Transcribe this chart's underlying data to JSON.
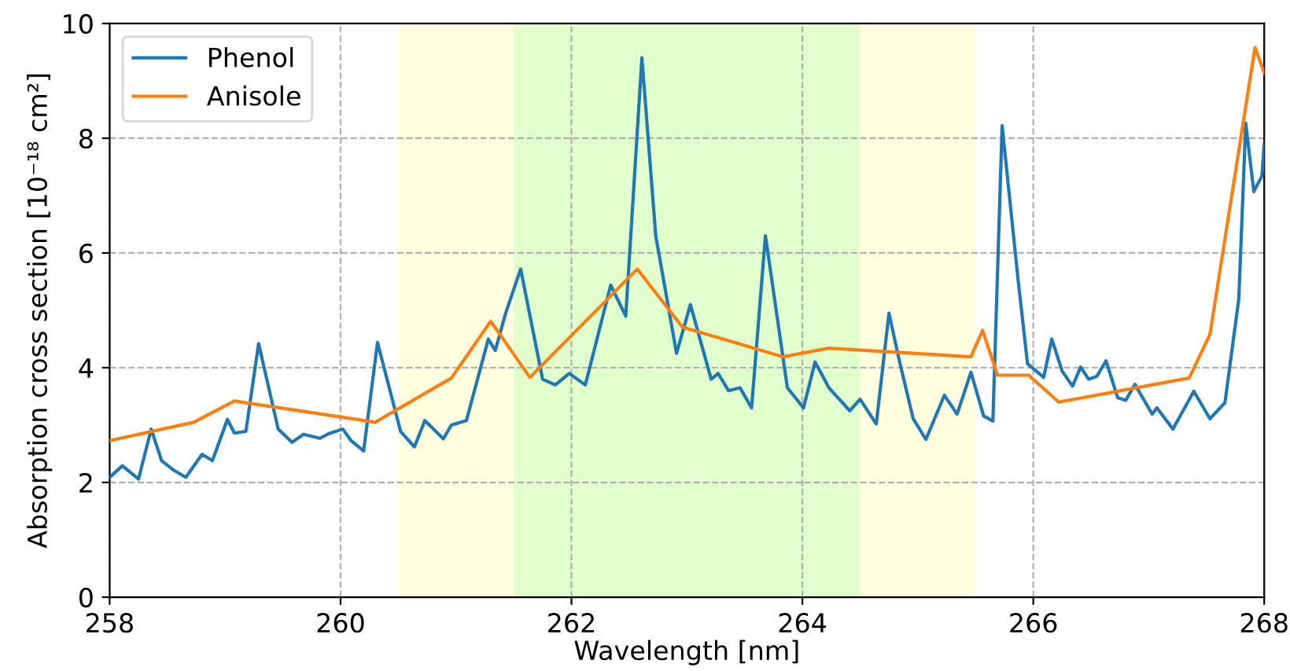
{
  "chart_data": {
    "type": "line",
    "xlabel": "Wavelength [nm]",
    "ylabel": "Absorption cross section [10⁻¹⁸ cm²]",
    "xlim": [
      258,
      268
    ],
    "xticks": [
      258,
      260,
      262,
      264,
      266,
      268
    ],
    "ylim": [
      0,
      10
    ],
    "yticks": [
      0,
      2,
      4,
      6,
      8,
      10
    ],
    "grid": true,
    "legend": "top left",
    "bands": [
      {
        "axis": "x",
        "from": 260.5,
        "to": 265.5,
        "color": "#ffffe0"
      },
      {
        "axis": "x",
        "from": 261.5,
        "to": 264.5,
        "color": "#e0ffcc"
      }
    ],
    "series": [
      {
        "name": "Phenol",
        "color": "#1f77b4",
        "x": [
          258,
          258.11,
          258.25,
          258.36,
          258.45,
          258.55,
          258.66,
          258.8,
          258.89,
          259.02,
          259.08,
          259.18,
          259.29,
          259.46,
          259.58,
          259.68,
          259.82,
          259.91,
          260.02,
          260.09,
          260.2,
          260.32,
          260.52,
          260.64,
          260.73,
          260.89,
          260.96,
          261.09,
          261.28,
          261.34,
          261.43,
          261.56,
          261.75,
          261.86,
          261.98,
          262.12,
          262.34,
          262.47,
          262.61,
          262.73,
          262.91,
          263.03,
          263.21,
          263.27,
          263.36,
          263.46,
          263.56,
          263.68,
          263.87,
          264.01,
          264.11,
          264.23,
          264.41,
          264.5,
          264.64,
          264.75,
          264.84,
          264.96,
          265.07,
          265.23,
          265.34,
          265.46,
          265.57,
          265.65,
          265.73,
          265.87,
          265.95,
          266.09,
          266.16,
          266.25,
          266.34,
          266.41,
          266.48,
          266.55,
          266.63,
          266.73,
          266.8,
          266.88,
          267.03,
          267.07,
          267.21,
          267.39,
          267.53,
          267.66,
          267.78,
          267.84,
          267.91,
          267.98,
          268
        ],
        "values": [
          2.09,
          2.29,
          2.06,
          2.93,
          2.38,
          2.22,
          2.09,
          2.49,
          2.38,
          3.1,
          2.86,
          2.89,
          4.42,
          2.93,
          2.7,
          2.84,
          2.77,
          2.86,
          2.93,
          2.73,
          2.55,
          4.44,
          2.89,
          2.62,
          3.08,
          2.76,
          3.0,
          3.08,
          4.5,
          4.3,
          4.95,
          5.72,
          3.8,
          3.7,
          3.9,
          3.7,
          5.44,
          4.9,
          9.4,
          6.3,
          4.25,
          5.1,
          3.8,
          3.9,
          3.6,
          3.65,
          3.3,
          6.3,
          3.65,
          3.3,
          4.1,
          3.65,
          3.25,
          3.45,
          3.02,
          4.95,
          4.12,
          3.11,
          2.75,
          3.52,
          3.19,
          3.92,
          3.16,
          3.07,
          8.22,
          5.5,
          4.07,
          3.83,
          4.5,
          3.94,
          3.68,
          4.01,
          3.8,
          3.85,
          4.12,
          3.48,
          3.43,
          3.71,
          3.19,
          3.3,
          2.93,
          3.59,
          3.11,
          3.39,
          5.2,
          8.26,
          7.07,
          7.34,
          7.9
        ]
      },
      {
        "name": "Anisole",
        "color": "#ff7f0e",
        "x": [
          258,
          258.73,
          259.08,
          260.3,
          260.96,
          261.3,
          261.64,
          262.57,
          262.96,
          263.83,
          264.23,
          265.46,
          265.56,
          265.69,
          265.96,
          266.22,
          267.35,
          267.53,
          267.92,
          268
        ],
        "values": [
          2.73,
          3.05,
          3.42,
          3.05,
          3.82,
          4.81,
          3.83,
          5.72,
          4.71,
          4.19,
          4.34,
          4.19,
          4.65,
          3.87,
          3.87,
          3.4,
          3.82,
          4.58,
          9.58,
          9.14
        ]
      }
    ]
  }
}
